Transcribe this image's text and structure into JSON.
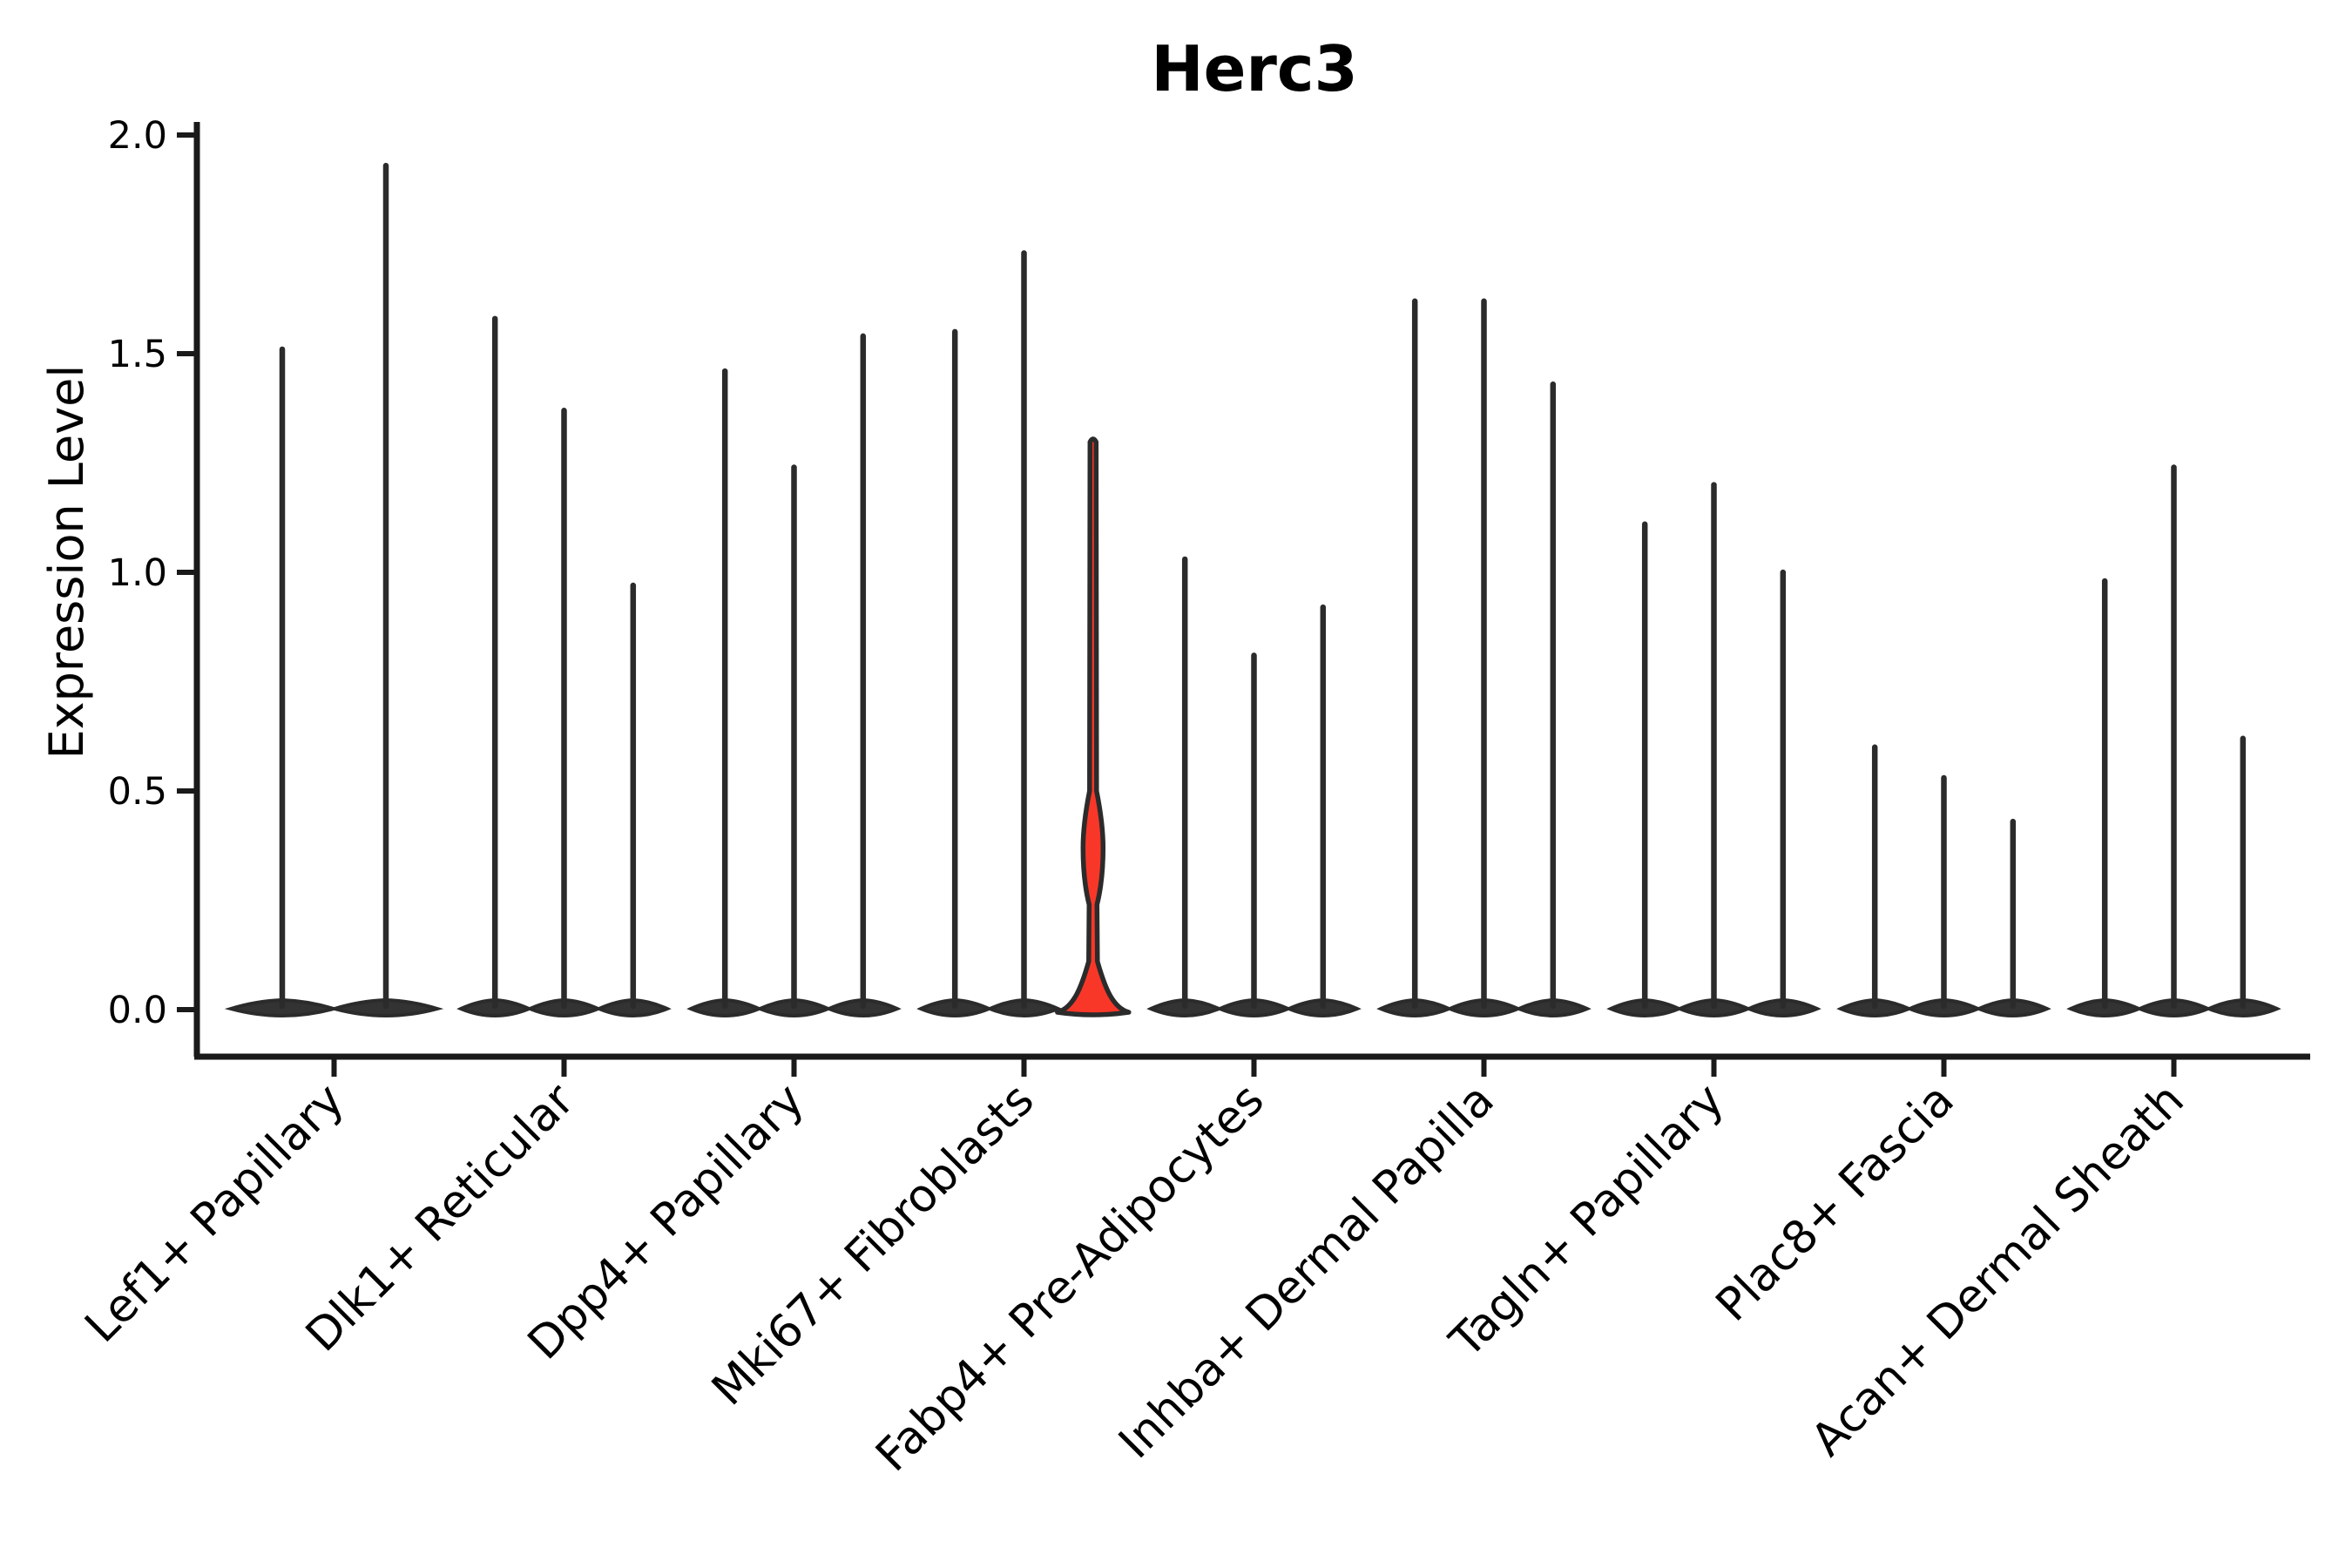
{
  "chart_data": {
    "type": "violin",
    "title": "Herc3",
    "ylabel": "Expression Level",
    "xlabel": "",
    "ylim": [
      0.0,
      2.0
    ],
    "ytick_labels": [
      "0.0",
      "0.5",
      "1.0",
      "1.5",
      "2.0"
    ],
    "yticks": [
      0.0,
      0.5,
      1.0,
      1.5,
      2.0
    ],
    "grid": false,
    "legend": false,
    "categories": [
      "Lef1+ Papillary",
      "Dlk1+ Reticular",
      "Dpp4+ Papillary",
      "Mki67+ Fibroblasts",
      "Fabp4+ Pre-Adipocytes",
      "Inhba+ Dermal Papilla",
      "Tagln+ Papillary",
      "Plac8+ Fascia",
      "Acan+ Dermal Sheath"
    ],
    "groups": [
      {
        "category": "Lef1+ Papillary",
        "violin_maxima": [
          1.51,
          1.93
        ]
      },
      {
        "category": "Dlk1+ Reticular",
        "violin_maxima": [
          1.58,
          1.37,
          0.97
        ]
      },
      {
        "category": "Dpp4+ Papillary",
        "violin_maxima": [
          1.46,
          1.24,
          1.54
        ]
      },
      {
        "category": "Mki67+ Fibroblasts",
        "violin_maxima": [
          1.55,
          1.73,
          1.31
        ],
        "highlight_index": 2
      },
      {
        "category": "Fabp4+ Pre-Adipocytes",
        "violin_maxima": [
          1.03,
          0.81,
          0.92
        ]
      },
      {
        "category": "Inhba+ Dermal Papilla",
        "violin_maxima": [
          1.62,
          1.62,
          1.43
        ]
      },
      {
        "category": "Tagln+ Papillary",
        "violin_maxima": [
          1.11,
          1.2,
          1.0
        ]
      },
      {
        "category": "Plac8+ Fascia",
        "violin_maxima": [
          0.6,
          0.53,
          0.43
        ]
      },
      {
        "category": "Acan+ Dermal Sheath",
        "violin_maxima": [
          0.98,
          1.24,
          0.62
        ]
      }
    ],
    "highlight": {
      "category": "Mki67+ Fibroblasts",
      "violin_index": 2,
      "max": 1.31,
      "mound_top": 0.11,
      "bulge_range": [
        0.24,
        0.5
      ]
    },
    "colors": {
      "violin_stroke": "#2b2b2b",
      "violin_fill_dark": "#333333",
      "highlight_fill": "#f93729",
      "axis": "#1a1a1a",
      "text": "#000000",
      "background": "#ffffff"
    }
  }
}
